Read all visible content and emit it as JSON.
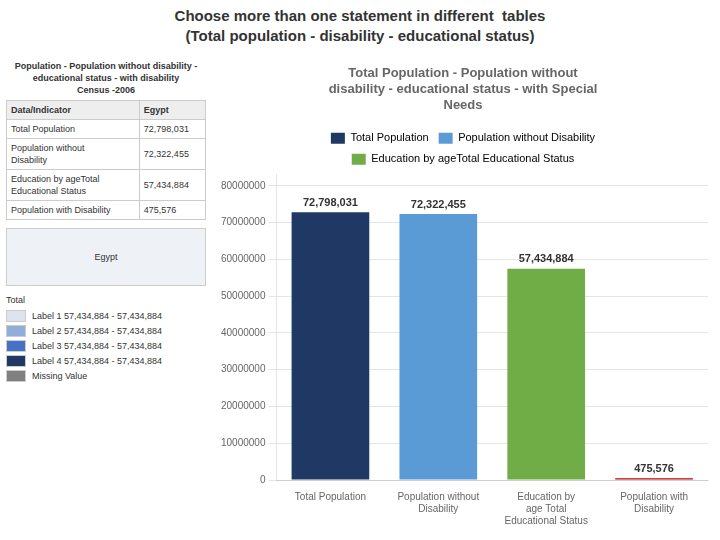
{
  "chart_data": {
    "type": "bar",
    "title": "Choose more than one statement in different  tables\n(Total population - disability - educational status)",
    "subtitle": "Total Population - Population without\ndisability - educational status - with Special\nNeeds",
    "categories": [
      "Total Population",
      "Population without\nDisability",
      "Education by\nage Total\nEducational Status",
      "Population with\nDisability"
    ],
    "values": [
      72798031,
      72322455,
      57434884,
      475576
    ],
    "colors": [
      "#1f3864",
      "#5b9bd5",
      "#70ad47",
      "#c00000"
    ],
    "data_labels": true,
    "value_labels": [
      "72,798,031",
      "72,322,455",
      "57,434,884",
      "475,576"
    ],
    "ylim": [
      0,
      83000000
    ],
    "yticks": [
      0,
      10000000,
      20000000,
      30000000,
      40000000,
      50000000,
      60000000,
      70000000,
      80000000
    ],
    "grid": true,
    "legend": "top",
    "legend_entries": [
      {
        "name": "Total Population",
        "color": "#1f3864"
      },
      {
        "name": "Population without Disability",
        "color": "#5b9bd5"
      },
      {
        "name": "Education by ageTotal\nEducational Status",
        "color": "#70ad47"
      }
    ],
    "annotations": [
      "Population - Population without disability -\neducational status - with disability\nCensus -2006",
      [
        "Data/Indicator",
        "Egypt"
      ],
      [
        "Total Population",
        "72,798,031"
      ],
      [
        "Population without\nDisability",
        "72,322,455"
      ],
      [
        "Education by ageTotal\nEducational Status",
        "57,434,884"
      ],
      [
        "Population with Disability",
        "475,576"
      ],
      {
        "box": "Egypt"
      },
      "Total",
      {
        "text": "Label 1 57,434,884 - 57,434,884",
        "color": "#dce4f0"
      },
      {
        "text": "Label 2 57,434,884 - 57,434,884",
        "color": "#8faed8"
      },
      {
        "text": "Label 3 57,434,884 - 57,434,884",
        "color": "#4472c4"
      },
      {
        "text": "Label 4 57,434,884 - 57,434,884",
        "color": "#1f3864"
      },
      {
        "text": "Missing Value",
        "color": "#808080"
      }
    ]
  }
}
